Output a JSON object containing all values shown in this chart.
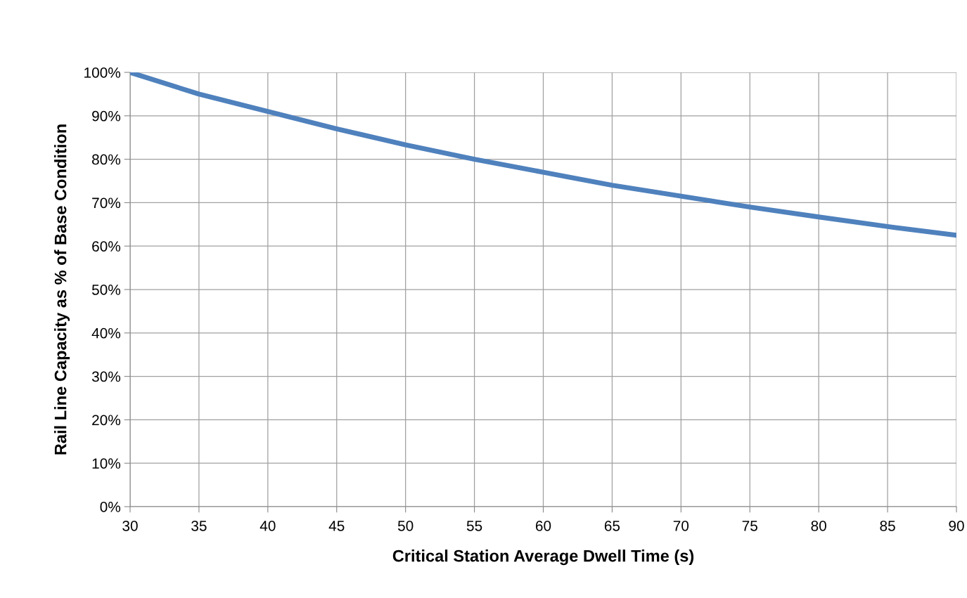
{
  "chart_data": {
    "type": "line",
    "xlabel": "Critical Station Average Dwell Time (s)",
    "ylabel": "Rail Line Capacity as % of Base Condition",
    "x": [
      30,
      35,
      40,
      45,
      50,
      55,
      60,
      65,
      70,
      75,
      80,
      85,
      90
    ],
    "series": [
      {
        "color": "#4f81bd",
        "values": [
          100,
          95,
          91,
          87,
          83.3,
          80,
          77,
          74,
          71.5,
          69,
          66.7,
          64.5,
          62.5
        ]
      }
    ],
    "xlim": [
      30,
      90
    ],
    "xticks": [
      30,
      35,
      40,
      45,
      50,
      55,
      60,
      65,
      70,
      75,
      80,
      85,
      90
    ],
    "ylim": [
      0,
      100
    ],
    "yticks": [
      {
        "value": 0,
        "label": "0%"
      },
      {
        "value": 10,
        "label": "10%"
      },
      {
        "value": 20,
        "label": "20%"
      },
      {
        "value": 30,
        "label": "30%"
      },
      {
        "value": 40,
        "label": "40%"
      },
      {
        "value": 50,
        "label": "50%"
      },
      {
        "value": 60,
        "label": "60%"
      },
      {
        "value": 70,
        "label": "70%"
      },
      {
        "value": 80,
        "label": "80%"
      },
      {
        "value": 90,
        "label": "90%"
      },
      {
        "value": 100,
        "label": "100%"
      }
    ],
    "grid": true,
    "marker": "none",
    "line_style": "solid"
  }
}
